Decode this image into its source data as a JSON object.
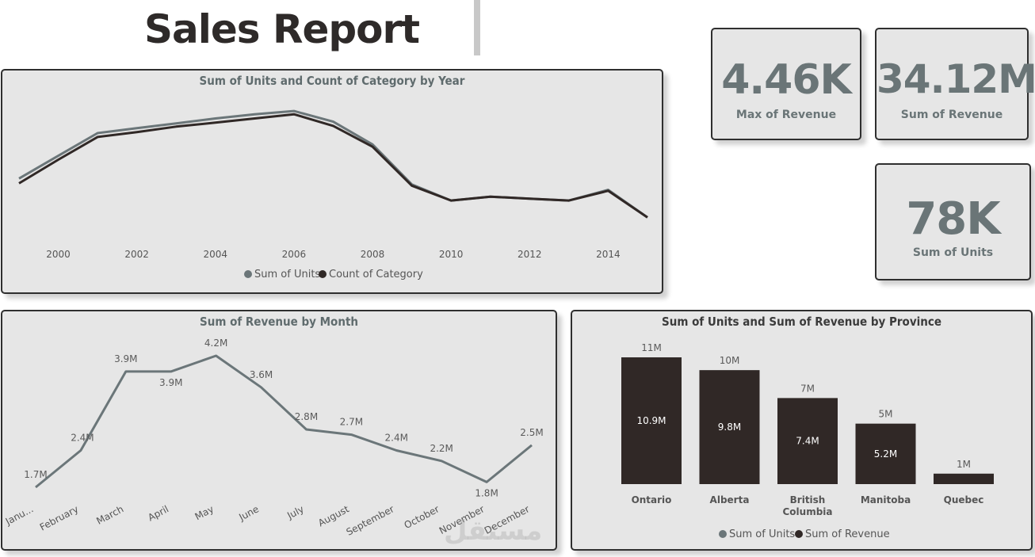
{
  "page": {
    "title": "Sales Report",
    "watermark": "مستقل"
  },
  "kpis": {
    "max_revenue": {
      "value": "4.46K",
      "label": "Max of Revenue"
    },
    "sum_revenue": {
      "value": "34.12M",
      "label": "Sum of Revenue"
    },
    "sum_units": {
      "value": "78K",
      "label": "Sum of Units"
    }
  },
  "colors": {
    "grey_series": "#6b7679",
    "dark_series": "#302826",
    "panel_bg": "#e6e6e6",
    "border": "#2f2f2f"
  },
  "chart_data": [
    {
      "type": "line",
      "title": "Sum of Units and Count of Category by Year",
      "x": [
        1999,
        2000,
        2001,
        2002,
        2003,
        2004,
        2005,
        2006,
        2007,
        2008,
        2009,
        2010,
        2011,
        2012,
        2013,
        2014,
        2015
      ],
      "xticks": [
        "2000",
        "2002",
        "2004",
        "2006",
        "2008",
        "2010",
        "2012",
        "2014"
      ],
      "series": [
        {
          "name": "Sum of Units",
          "color": "#6b7679",
          "values": [
            58,
            65,
            72,
            73.5,
            75,
            76.5,
            77.8,
            78.8,
            75.5,
            68.5,
            56.2,
            51.2,
            52.4,
            51.8,
            51.2,
            54.5,
            46
          ]
        },
        {
          "name": "Count of Category",
          "color": "#302826",
          "values": [
            56.5,
            63.8,
            70.8,
            72.3,
            74,
            75.2,
            76.5,
            77.8,
            74.2,
            67.8,
            55.8,
            51.2,
            52.4,
            51.8,
            51.2,
            54.2,
            46
          ]
        }
      ],
      "legend": "bottom-center"
    },
    {
      "type": "line",
      "title": "Sum of Revenue by Month",
      "categories": [
        "Janu...",
        "February",
        "March",
        "April",
        "May",
        "June",
        "July",
        "August",
        "September",
        "October",
        "November",
        "December"
      ],
      "series": [
        {
          "name": "Sum of Revenue",
          "color": "#6b7679",
          "values": [
            1.7,
            2.4,
            3.9,
            3.9,
            4.2,
            3.6,
            2.8,
            2.7,
            2.4,
            2.2,
            1.8,
            2.5
          ]
        }
      ],
      "labels": [
        "1.7M",
        "2.4M",
        "3.9M",
        "3.9M",
        "4.2M",
        "3.6M",
        "2.8M",
        "2.7M",
        "2.4M",
        "2.2M",
        "1.8M",
        "2.5M"
      ]
    },
    {
      "type": "bar",
      "title": "Sum of Units and Sum of Revenue by Province",
      "categories": [
        "Ontario",
        "Alberta",
        "British Columbia",
        "Manitoba",
        "Quebec"
      ],
      "series": [
        {
          "name": "Sum of Units",
          "color": "#6b7679",
          "values": [
            11,
            10,
            7,
            5,
            1
          ],
          "labels": [
            "11M",
            "10M",
            "7M",
            "5M",
            "1M"
          ]
        },
        {
          "name": "Sum of Revenue",
          "color": "#302826",
          "values": [
            10.9,
            9.8,
            7.4,
            5.2,
            0.9
          ],
          "labels": [
            "10.9M",
            "9.8M",
            "7.4M",
            "5.2M",
            ""
          ]
        }
      ],
      "legend": "bottom-center"
    }
  ]
}
